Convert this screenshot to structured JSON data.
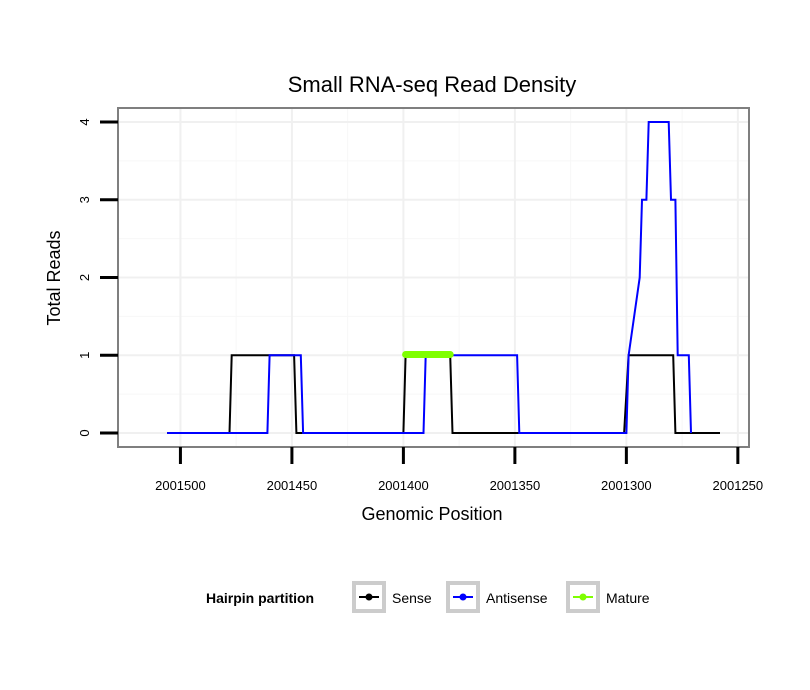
{
  "chart_data": {
    "type": "line",
    "title": "Small RNA-seq Read Density",
    "xlabel": "Genomic Position",
    "ylabel": "Total Reads",
    "xlim": [
      2001528,
      2001245
    ],
    "x_reversed": true,
    "ylim": [
      -0.18,
      4.18
    ],
    "x_ticks": [
      2001500,
      2001450,
      2001400,
      2001350,
      2001300,
      2001250
    ],
    "x_tick_labels": [
      "2001500",
      "2001450",
      "2001400",
      "2001350",
      "2001300",
      "2001250"
    ],
    "y_ticks": [
      0,
      1,
      2,
      3,
      4
    ],
    "y_tick_labels": [
      "0",
      "1",
      "2",
      "3",
      "4"
    ],
    "grid": true,
    "series": [
      {
        "name": "Sense",
        "color": "#000000",
        "points": [
          [
            2001506,
            0
          ],
          [
            2001478,
            0
          ],
          [
            2001477,
            1
          ],
          [
            2001449,
            1
          ],
          [
            2001448,
            0
          ],
          [
            2001400,
            0
          ],
          [
            2001399,
            1
          ],
          [
            2001379,
            1
          ],
          [
            2001378,
            0
          ],
          [
            2001301,
            0
          ],
          [
            2001299,
            1
          ],
          [
            2001279,
            1
          ],
          [
            2001278,
            0
          ],
          [
            2001258,
            0
          ]
        ]
      },
      {
        "name": "Antisense",
        "color": "#0000ff",
        "points": [
          [
            2001506,
            0
          ],
          [
            2001461,
            0
          ],
          [
            2001460,
            1
          ],
          [
            2001446,
            1
          ],
          [
            2001445,
            0
          ],
          [
            2001391,
            0
          ],
          [
            2001390,
            1
          ],
          [
            2001349,
            1
          ],
          [
            2001348,
            0
          ],
          [
            2001300,
            0
          ],
          [
            2001299,
            1
          ],
          [
            2001294,
            2
          ],
          [
            2001293,
            3
          ],
          [
            2001291,
            3
          ],
          [
            2001290,
            4
          ],
          [
            2001281,
            4
          ],
          [
            2001280,
            3
          ],
          [
            2001278,
            3
          ],
          [
            2001277,
            1
          ],
          [
            2001272,
            1
          ],
          [
            2001271,
            0
          ]
        ]
      },
      {
        "name": "Mature",
        "color": "#7fff00",
        "points": [
          [
            2001399,
            1.01
          ],
          [
            2001379,
            1.01
          ]
        ]
      }
    ],
    "legend": {
      "title": "Hairpin partition",
      "position": "bottom",
      "entries": [
        "Sense",
        "Antisense",
        "Mature"
      ]
    }
  }
}
